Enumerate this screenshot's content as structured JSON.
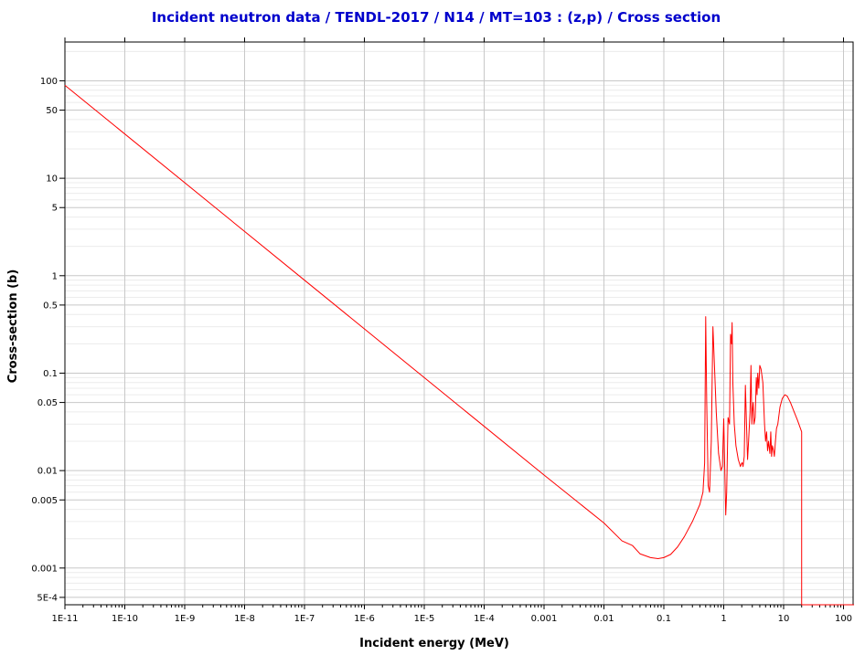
{
  "chart_data": {
    "type": "line",
    "title": "Incident neutron data / TENDL-2017 / N14 / MT=103 : (z,p) / Cross section",
    "xlabel": "Incident energy (MeV)",
    "ylabel": "Cross-section (b)",
    "xscale": "log",
    "yscale": "log",
    "xlim": [
      1e-11,
      150
    ],
    "ylim": [
      0.00042,
      250
    ],
    "grid": true,
    "x_ticks": [
      {
        "value": 1e-11,
        "label": "1E-11"
      },
      {
        "value": 1e-10,
        "label": "1E-10"
      },
      {
        "value": 1e-09,
        "label": "1E-9"
      },
      {
        "value": 1e-08,
        "label": "1E-8"
      },
      {
        "value": 1e-07,
        "label": "1E-7"
      },
      {
        "value": 1e-06,
        "label": "1E-6"
      },
      {
        "value": 1e-05,
        "label": "1E-5"
      },
      {
        "value": 0.0001,
        "label": "1E-4"
      },
      {
        "value": 0.001,
        "label": "0.001"
      },
      {
        "value": 0.01,
        "label": "0.01"
      },
      {
        "value": 0.1,
        "label": "0.1"
      },
      {
        "value": 1,
        "label": "1"
      },
      {
        "value": 10,
        "label": "10"
      },
      {
        "value": 100,
        "label": "100"
      }
    ],
    "y_ticks": [
      {
        "value": 100,
        "label": "100"
      },
      {
        "value": 50,
        "label": "50"
      },
      {
        "value": 10,
        "label": "10"
      },
      {
        "value": 5,
        "label": "5"
      },
      {
        "value": 1,
        "label": "1"
      },
      {
        "value": 0.5,
        "label": "0.5"
      },
      {
        "value": 0.1,
        "label": "0.1"
      },
      {
        "value": 0.05,
        "label": "0.05"
      },
      {
        "value": 0.01,
        "label": "0.01"
      },
      {
        "value": 0.005,
        "label": "0.005"
      },
      {
        "value": 0.001,
        "label": "0.001"
      },
      {
        "value": 0.0005,
        "label": "5E-4"
      }
    ],
    "series": [
      {
        "color": "#ff0000",
        "points": [
          [
            1e-11,
            90
          ],
          [
            1e-07,
            0.9
          ],
          [
            0.001,
            0.009
          ],
          [
            0.01,
            0.0029
          ],
          [
            0.02,
            0.0019
          ],
          [
            0.03,
            0.0017
          ],
          [
            0.04,
            0.0014
          ],
          [
            0.06,
            0.00128
          ],
          [
            0.08,
            0.00125
          ],
          [
            0.1,
            0.00128
          ],
          [
            0.13,
            0.00138
          ],
          [
            0.17,
            0.00165
          ],
          [
            0.22,
            0.0021
          ],
          [
            0.3,
            0.003
          ],
          [
            0.4,
            0.0045
          ],
          [
            0.45,
            0.006
          ],
          [
            0.48,
            0.012
          ],
          [
            0.5,
            0.38
          ],
          [
            0.52,
            0.05
          ],
          [
            0.55,
            0.007
          ],
          [
            0.58,
            0.006
          ],
          [
            0.62,
            0.02
          ],
          [
            0.66,
            0.3
          ],
          [
            0.7,
            0.12
          ],
          [
            0.75,
            0.04
          ],
          [
            0.82,
            0.015
          ],
          [
            0.9,
            0.01
          ],
          [
            0.95,
            0.011
          ],
          [
            1.0,
            0.034
          ],
          [
            1.05,
            0.008
          ],
          [
            1.08,
            0.0035
          ],
          [
            1.12,
            0.006
          ],
          [
            1.18,
            0.035
          ],
          [
            1.25,
            0.03
          ],
          [
            1.3,
            0.25
          ],
          [
            1.35,
            0.2
          ],
          [
            1.38,
            0.33
          ],
          [
            1.42,
            0.08
          ],
          [
            1.5,
            0.03
          ],
          [
            1.6,
            0.018
          ],
          [
            1.75,
            0.013
          ],
          [
            1.9,
            0.011
          ],
          [
            2.0,
            0.012
          ],
          [
            2.05,
            0.012
          ],
          [
            2.1,
            0.011
          ],
          [
            2.2,
            0.014
          ],
          [
            2.3,
            0.075
          ],
          [
            2.4,
            0.03
          ],
          [
            2.5,
            0.013
          ],
          [
            2.6,
            0.02
          ],
          [
            2.75,
            0.04
          ],
          [
            2.85,
            0.12
          ],
          [
            2.95,
            0.03
          ],
          [
            3.0,
            0.04
          ],
          [
            3.1,
            0.05
          ],
          [
            3.2,
            0.03
          ],
          [
            3.35,
            0.035
          ],
          [
            3.5,
            0.09
          ],
          [
            3.6,
            0.06
          ],
          [
            3.7,
            0.1
          ],
          [
            3.85,
            0.07
          ],
          [
            4.0,
            0.12
          ],
          [
            4.2,
            0.11
          ],
          [
            4.5,
            0.08
          ],
          [
            4.8,
            0.03
          ],
          [
            5.0,
            0.02
          ],
          [
            5.2,
            0.025
          ],
          [
            5.4,
            0.016
          ],
          [
            5.6,
            0.02
          ],
          [
            5.9,
            0.015
          ],
          [
            6.1,
            0.025
          ],
          [
            6.3,
            0.014
          ],
          [
            6.5,
            0.018
          ],
          [
            6.8,
            0.016
          ],
          [
            7.0,
            0.014
          ],
          [
            7.3,
            0.02
          ],
          [
            7.6,
            0.027
          ],
          [
            8.0,
            0.03
          ],
          [
            8.7,
            0.045
          ],
          [
            9.5,
            0.055
          ],
          [
            10.5,
            0.06
          ],
          [
            11.5,
            0.058
          ],
          [
            13,
            0.05
          ],
          [
            15,
            0.04
          ],
          [
            17,
            0.033
          ],
          [
            20,
            0.025
          ],
          [
            20.001,
            0.00042
          ],
          [
            150,
            0.00042
          ]
        ]
      }
    ]
  }
}
